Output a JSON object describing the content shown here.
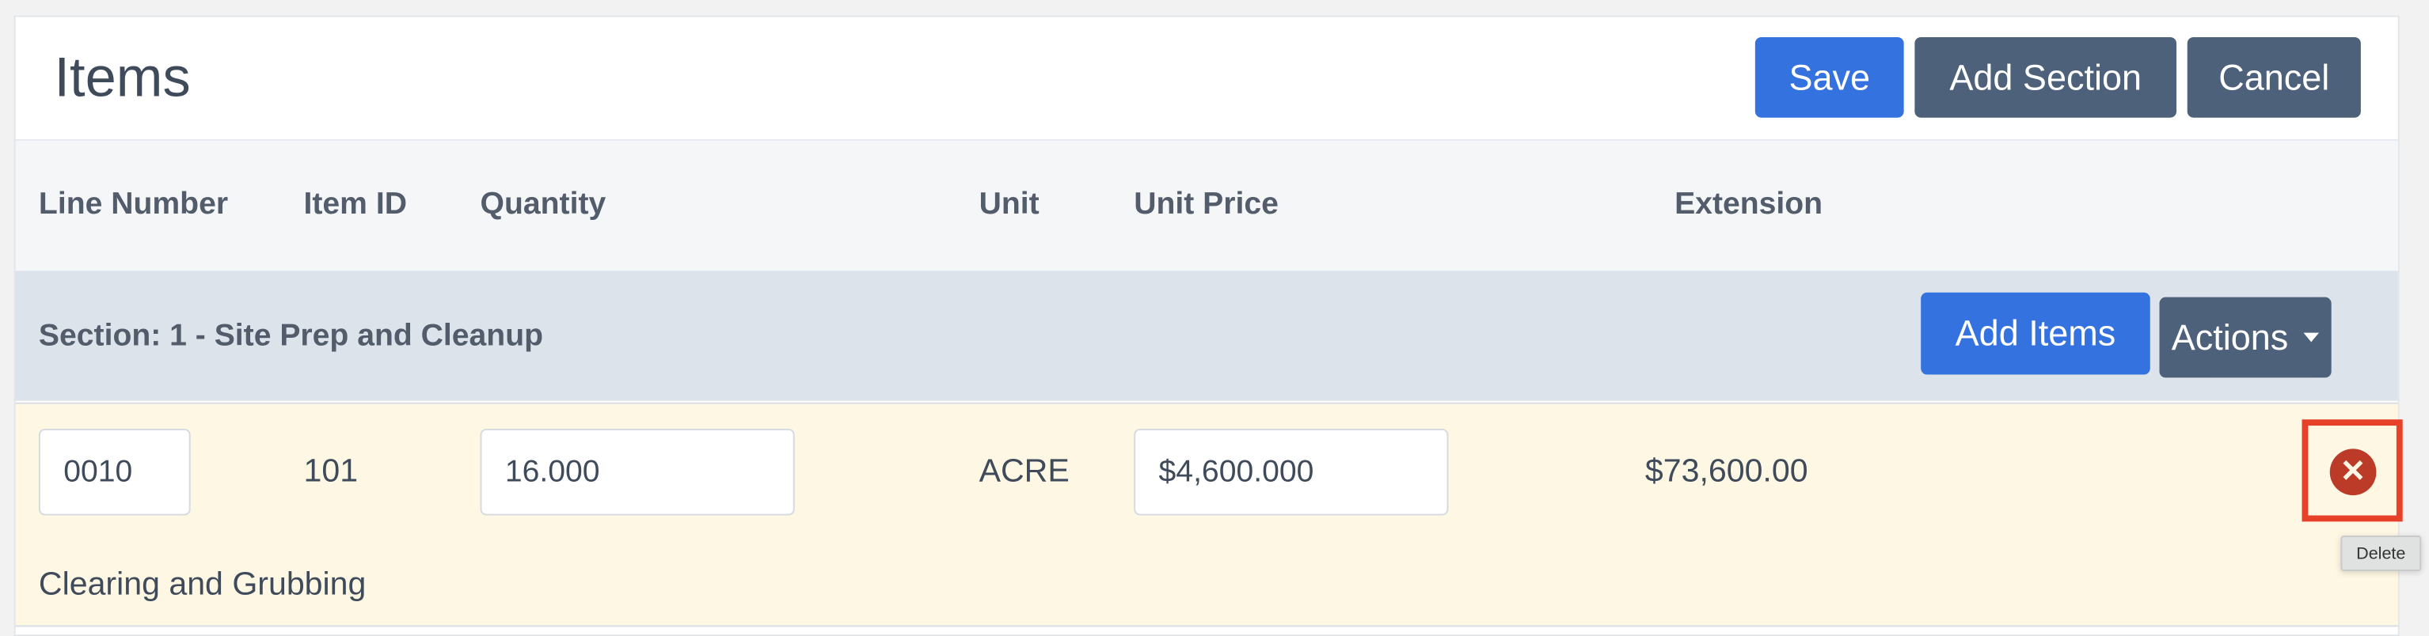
{
  "header": {
    "title": "Items",
    "save_label": "Save",
    "add_section_label": "Add Section",
    "cancel_label": "Cancel"
  },
  "columns": [
    "Line Number",
    "Item ID",
    "Quantity",
    "Unit",
    "Unit Price",
    "Extension"
  ],
  "section": {
    "title": "Section: 1 - Site Prep and Cleanup",
    "add_items_label": "Add Items",
    "actions_label": "Actions"
  },
  "items": [
    {
      "line_number": "0010",
      "item_id": "101",
      "quantity": "16.000",
      "unit": "ACRE",
      "unit_price": "$4,600.000",
      "extension": "$73,600.00",
      "description": "Clearing and Grubbing",
      "delete_icon": "close-circle-icon"
    }
  ],
  "tooltip": "Delete",
  "colors": {
    "primary": "#3472df",
    "secondary": "#4e617b",
    "danger": "#bb3a28",
    "highlight": "#e8412a",
    "row_bg": "#fdf7e3"
  }
}
